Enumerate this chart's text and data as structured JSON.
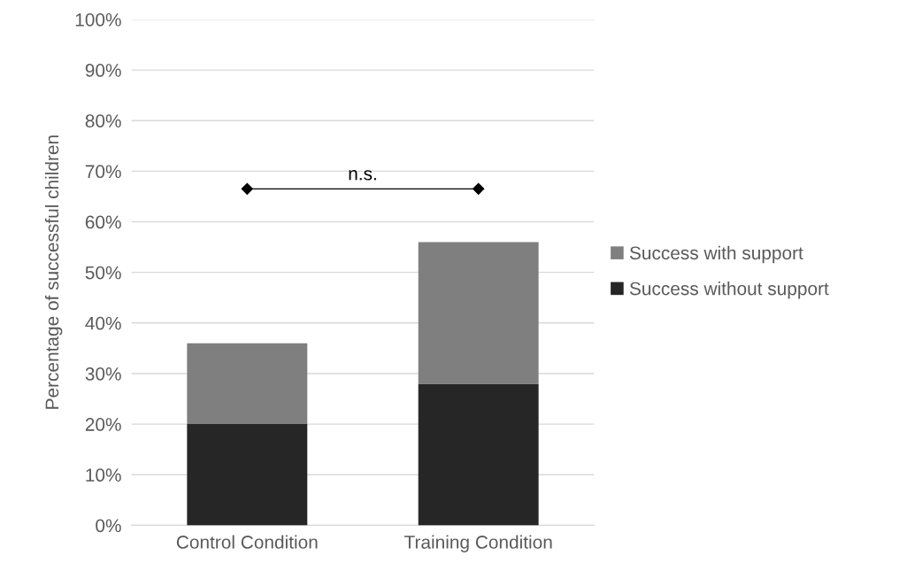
{
  "chart_data": {
    "type": "bar",
    "stacked": true,
    "ylabel": "Percentage of successful children",
    "categories": [
      "Control Condition",
      "Training Condition"
    ],
    "series": [
      {
        "name": "Success without support",
        "color": "#262626",
        "values": [
          20,
          28
        ]
      },
      {
        "name": "Success with support",
        "color": "#7f7f7f",
        "values": [
          16,
          28
        ]
      }
    ],
    "ylim": [
      0,
      100
    ],
    "yticks": [
      {
        "value": 0,
        "label": "0%"
      },
      {
        "value": 10,
        "label": "10%"
      },
      {
        "value": 20,
        "label": "20%"
      },
      {
        "value": 30,
        "label": "30%"
      },
      {
        "value": 40,
        "label": "40%"
      },
      {
        "value": 50,
        "label": "50%"
      },
      {
        "value": 60,
        "label": "60%"
      },
      {
        "value": 70,
        "label": "70%"
      },
      {
        "value": 80,
        "label": "80%"
      },
      {
        "value": 90,
        "label": "90%"
      },
      {
        "value": 100,
        "label": "100%"
      }
    ],
    "grid": "y",
    "legend": "right",
    "annotations": [
      "n.s."
    ]
  }
}
